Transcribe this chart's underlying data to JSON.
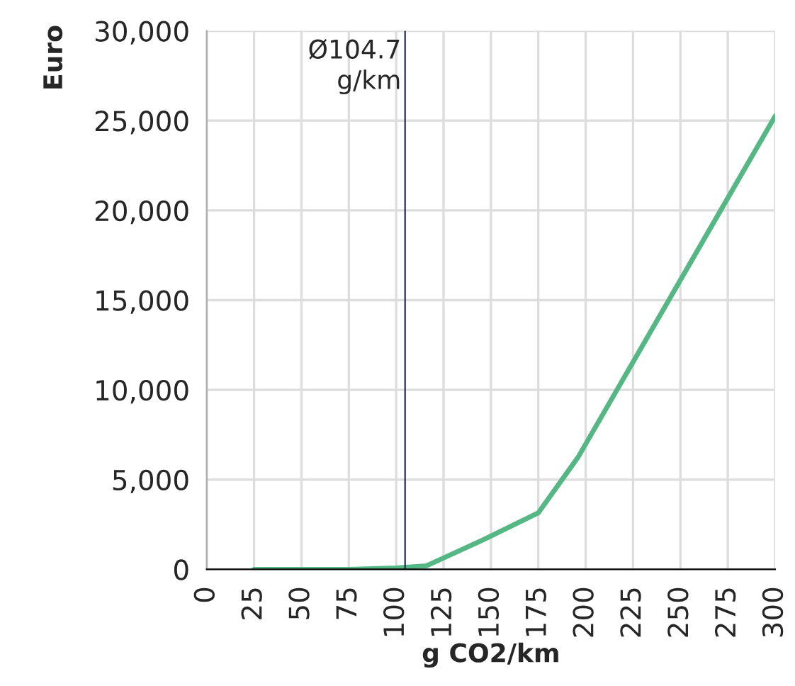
{
  "chart_data": {
    "type": "line",
    "xlabel": "g CO2/km",
    "ylabel": "Euro",
    "series": [
      {
        "color": "#55b784",
        "x": [
          25,
          50,
          75,
          100,
          116,
          146,
          175,
          196,
          300
        ],
        "values": [
          0,
          0,
          0,
          80,
          200,
          1650,
          3150,
          6250,
          25250
        ]
      }
    ],
    "xlim": [
      0,
      300
    ],
    "xticks": [
      0,
      25,
      50,
      75,
      100,
      125,
      150,
      175,
      200,
      225,
      250,
      275,
      300
    ],
    "ylim": [
      0,
      30000
    ],
    "yticks": [
      {
        "value": 0,
        "label": "0"
      },
      {
        "value": 5000,
        "label": "5,000"
      },
      {
        "value": 10000,
        "label": "10,000"
      },
      {
        "value": 15000,
        "label": "15,000"
      },
      {
        "value": 20000,
        "label": "20,000"
      },
      {
        "value": 25000,
        "label": "25,000"
      },
      {
        "value": 30000,
        "label": "30,000"
      }
    ],
    "ref_lines": [
      {
        "axis": "x",
        "value": 104.7,
        "label": "Ø104.7\ng/km",
        "color": "#1f2f55"
      }
    ],
    "grid": true,
    "legend": false,
    "marker": "none",
    "line_style": "solid"
  }
}
